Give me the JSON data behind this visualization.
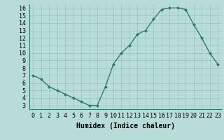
{
  "x": [
    0,
    1,
    2,
    3,
    4,
    5,
    6,
    7,
    8,
    9,
    10,
    11,
    12,
    13,
    14,
    15,
    16,
    17,
    18,
    19,
    20,
    21,
    22,
    23
  ],
  "y": [
    7.0,
    6.5,
    5.5,
    5.0,
    4.5,
    4.0,
    3.5,
    3.0,
    3.0,
    5.5,
    8.5,
    10.0,
    11.0,
    12.5,
    13.0,
    14.5,
    15.8,
    16.0,
    16.0,
    15.8,
    13.8,
    12.0,
    10.0,
    8.5
  ],
  "line_color": "#2e7d6e",
  "marker": "D",
  "marker_size": 2.0,
  "bg_color": "#b8dcd8",
  "grid_color": "#9dc8c4",
  "xlabel": "Humidex (Indice chaleur)",
  "xlim": [
    -0.5,
    23.5
  ],
  "ylim": [
    2.5,
    16.5
  ],
  "yticks": [
    3,
    4,
    5,
    6,
    7,
    8,
    9,
    10,
    11,
    12,
    13,
    14,
    15,
    16
  ],
  "xtick_labels": [
    "0",
    "1",
    "2",
    "3",
    "4",
    "5",
    "6",
    "7",
    "8",
    "9",
    "10",
    "11",
    "12",
    "13",
    "14",
    "15",
    "16",
    "17",
    "18",
    "19",
    "20",
    "21",
    "22",
    "23"
  ],
  "xlabel_fontsize": 7,
  "tick_fontsize": 6,
  "line_width": 1.0
}
